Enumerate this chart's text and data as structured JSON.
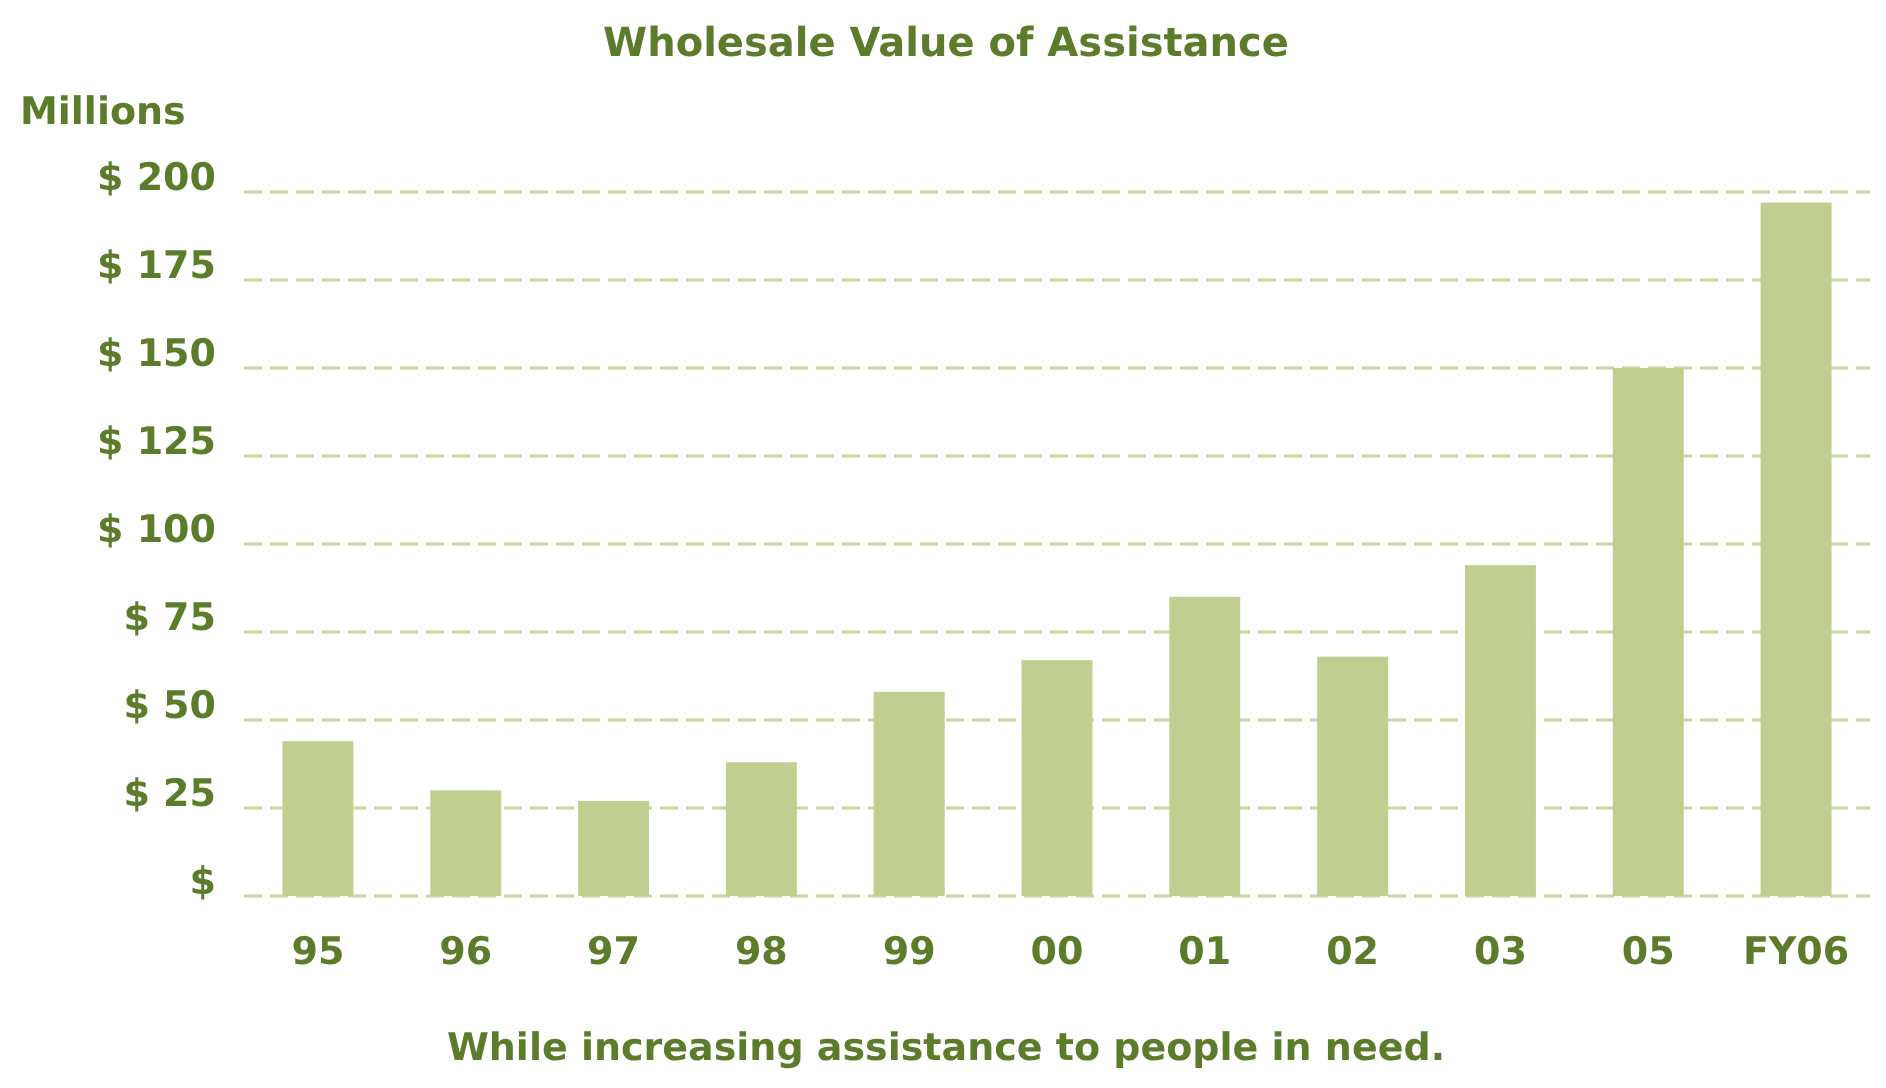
{
  "chart_data": {
    "type": "bar",
    "title": "Wholesale Value of Assistance",
    "ylabel": "Millions",
    "categories": [
      "95",
      "96",
      "97",
      "98",
      "99",
      "00",
      "01",
      "02",
      "03",
      "05",
      "FY06"
    ],
    "values": [
      44,
      30,
      27,
      38,
      58,
      67,
      85,
      68,
      94,
      150,
      197
    ],
    "color": "#c0cf8f",
    "ylim": [
      0,
      200
    ],
    "yticks": [
      {
        "value": 0,
        "label": "$"
      },
      {
        "value": 25,
        "label": "$ 25"
      },
      {
        "value": 50,
        "label": "$ 50"
      },
      {
        "value": 75,
        "label": "$ 75"
      },
      {
        "value": 100,
        "label": "$ 100"
      },
      {
        "value": 125,
        "label": "$ 125"
      },
      {
        "value": 150,
        "label": "$ 150"
      },
      {
        "value": 175,
        "label": "$ 175"
      },
      {
        "value": 200,
        "label": "$ 200"
      }
    ],
    "grid": "y",
    "annotations": [
      "While increasing assistance to people in need."
    ]
  }
}
